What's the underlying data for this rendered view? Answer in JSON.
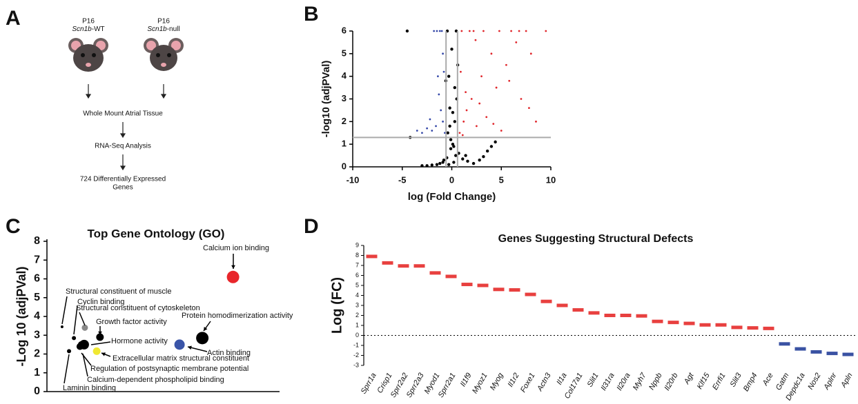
{
  "panel_labels": [
    "A",
    "B",
    "C",
    "D"
  ],
  "diagram": {
    "groups": [
      {
        "age": "P16",
        "gene": "Scn1b",
        "suffix": "-WT"
      },
      {
        "age": "P16",
        "gene": "Scn1b",
        "suffix": "-null"
      }
    ],
    "steps": [
      [
        "Whole Mount Atrial Tissue"
      ],
      [
        "RNA-Seq Analysis"
      ],
      [
        "724 Differentially Expressed",
        "Genes"
      ]
    ]
  },
  "chart_data": [
    {
      "type": "scatter",
      "xlabel": "log (Fold Change)",
      "ylabel": "-log10 (adjPVal)",
      "xlim": [
        -10,
        10
      ],
      "xticks": [
        -10,
        -5,
        0,
        5,
        10
      ],
      "ylim": [
        0,
        6
      ],
      "yticks": [
        0,
        1,
        2,
        3,
        4,
        5,
        6
      ],
      "hline": 1.3,
      "vlines": [
        -0.58,
        0.58
      ],
      "line_color": "#aaaaaa",
      "series": [
        {
          "color": "#000000",
          "x": [
            -0.3,
            0.2,
            -0.5,
            0.4,
            -0.1,
            0.1,
            -0.8,
            0.7,
            -1.2,
            1.1,
            -1.5,
            1.6,
            -2.0,
            2.2,
            -2.5,
            2.8,
            3.2,
            3.6,
            -0.4,
            0.3,
            -0.2,
            0.5,
            -0.6,
            0.6,
            0,
            -0.1,
            0.2,
            -3.0,
            4.0,
            4.4,
            -0.45,
            0.45,
            -0.3,
            0.3,
            -0.9,
            1.4,
            -4.5,
            -4.2,
            -0.2,
            0.1
          ],
          "values": [
            0.1,
            0.2,
            0.4,
            0.5,
            0.8,
            1.0,
            0.3,
            0.6,
            0.15,
            0.35,
            0.1,
            0.25,
            0.08,
            0.15,
            0.05,
            0.3,
            0.45,
            0.7,
            1.5,
            2.0,
            2.6,
            3.0,
            3.8,
            4.5,
            5.2,
            1.2,
            0.9,
            0.05,
            0.9,
            1.1,
            6,
            6,
            4.0,
            3.5,
            0.2,
            0.5,
            6,
            1.3,
            1.8,
            2.4
          ]
        },
        {
          "color": "#e0262b",
          "x": [
            0.8,
            1.2,
            1.5,
            2.0,
            2.5,
            3.0,
            3.5,
            4.0,
            4.5,
            5.0,
            5.5,
            6.0,
            6.5,
            7.0,
            7.5,
            8.0,
            8.5,
            9.5,
            1.0,
            1.8,
            2.2,
            3.2,
            4.8,
            6.8,
            0.9,
            1.4,
            2.8,
            4.2,
            5.8,
            7.8,
            1.1,
            2.4
          ],
          "values": [
            1.5,
            2.0,
            2.5,
            3.0,
            1.8,
            4.0,
            2.2,
            5.0,
            3.5,
            1.6,
            4.5,
            6,
            5.5,
            3.0,
            6,
            5.0,
            2.0,
            6,
            6,
            6,
            6,
            6,
            6,
            6,
            4.2,
            3.3,
            2.8,
            1.9,
            3.8,
            2.6,
            1.4,
            5.6
          ]
        },
        {
          "color": "#3548a8",
          "x": [
            -0.7,
            -0.9,
            -1.1,
            -1.3,
            -1.6,
            -2.0,
            -2.5,
            -3.0,
            -0.8,
            -1.0,
            -1.2,
            -1.5,
            -1.8,
            -0.9,
            -1.4,
            -3.5,
            -2.2
          ],
          "values": [
            1.5,
            2.0,
            2.5,
            3.2,
            1.8,
            1.6,
            1.7,
            1.5,
            4.2,
            6,
            6,
            6,
            6,
            5.0,
            4.0,
            1.6,
            2.1
          ]
        }
      ]
    },
    {
      "type": "bubble",
      "title": "Top Gene Ontology (GO)",
      "ylabel": "-Log 10 (adjPVal)",
      "xlim": [
        0,
        10
      ],
      "ylim": [
        0,
        8
      ],
      "yticks": [
        0,
        1,
        2,
        3,
        4,
        5,
        6,
        7,
        8
      ],
      "categories": [
        "Calcium ion binding",
        "Structural constituent of muscle",
        "Cyclin binding",
        "Structural constituent of cytoskeleton",
        "Growth factor activity",
        "Protein homodimerization activity",
        "Hormone activity",
        "Actin binding",
        "Extracellular matrix structural constituent",
        "Regulation of postsynaptic membrane potential",
        "Calcium-dependent phospholipid binding",
        "Laminin binding"
      ],
      "x": [
        8.0,
        0.65,
        1.16,
        1.63,
        2.28,
        6.68,
        1.6,
        5.7,
        2.14,
        1.42,
        1.48,
        0.95
      ],
      "values": [
        6.1,
        3.45,
        2.85,
        3.4,
        2.9,
        2.85,
        2.5,
        2.5,
        2.15,
        2.4,
        2.5,
        2.15
      ],
      "sizes": [
        9,
        2,
        3,
        4.5,
        5.5,
        9,
        7,
        7.5,
        5.5,
        5,
        5,
        3
      ],
      "colors": [
        "#e8262b",
        "#000000",
        "#000000",
        "#888888",
        "#000000",
        "#000000",
        "#000000",
        "#3a55a8",
        "#f0e832",
        "#000000",
        "#000000",
        "#000000"
      ]
    },
    {
      "type": "floating_bar",
      "title": "Genes Suggesting Structural Defects",
      "ylabel": "Log (FC)",
      "ylim": [
        -3,
        9
      ],
      "yticks": [
        -3,
        -2,
        -1,
        0,
        1,
        2,
        3,
        4,
        5,
        6,
        7,
        8,
        9
      ],
      "zero_line": true,
      "colors": {
        "positive": "#e8403f",
        "negative": "#3a52a3"
      },
      "categories": [
        "Sprr1a",
        "Crisp1",
        "Sprr2a2",
        "Sprr2a3",
        "Myod1",
        "Sprr2a1",
        "Il1f9",
        "Myoz1",
        "Myog",
        "Il1r2",
        "Foxe1",
        "Actn3",
        "Il1a",
        "Col17a1",
        "Slit1",
        "Il31ra",
        "Il20ra",
        "Myh7",
        "Nppb",
        "Il20rb",
        "Agt",
        "Klf15",
        "Errfi1",
        "Slit3",
        "Bmp4",
        "Ace",
        "Gatm",
        "Depdc1a",
        "Nos2",
        "Aplnr",
        "Apln"
      ],
      "values": [
        7.9,
        7.25,
        6.95,
        6.95,
        6.25,
        5.9,
        5.1,
        5.0,
        4.6,
        4.55,
        4.1,
        3.4,
        3.0,
        2.55,
        2.25,
        2.0,
        2.0,
        1.95,
        1.4,
        1.3,
        1.2,
        1.05,
        1.05,
        0.8,
        0.75,
        0.7,
        -0.85,
        -1.35,
        -1.65,
        -1.8,
        -1.9
      ]
    }
  ]
}
